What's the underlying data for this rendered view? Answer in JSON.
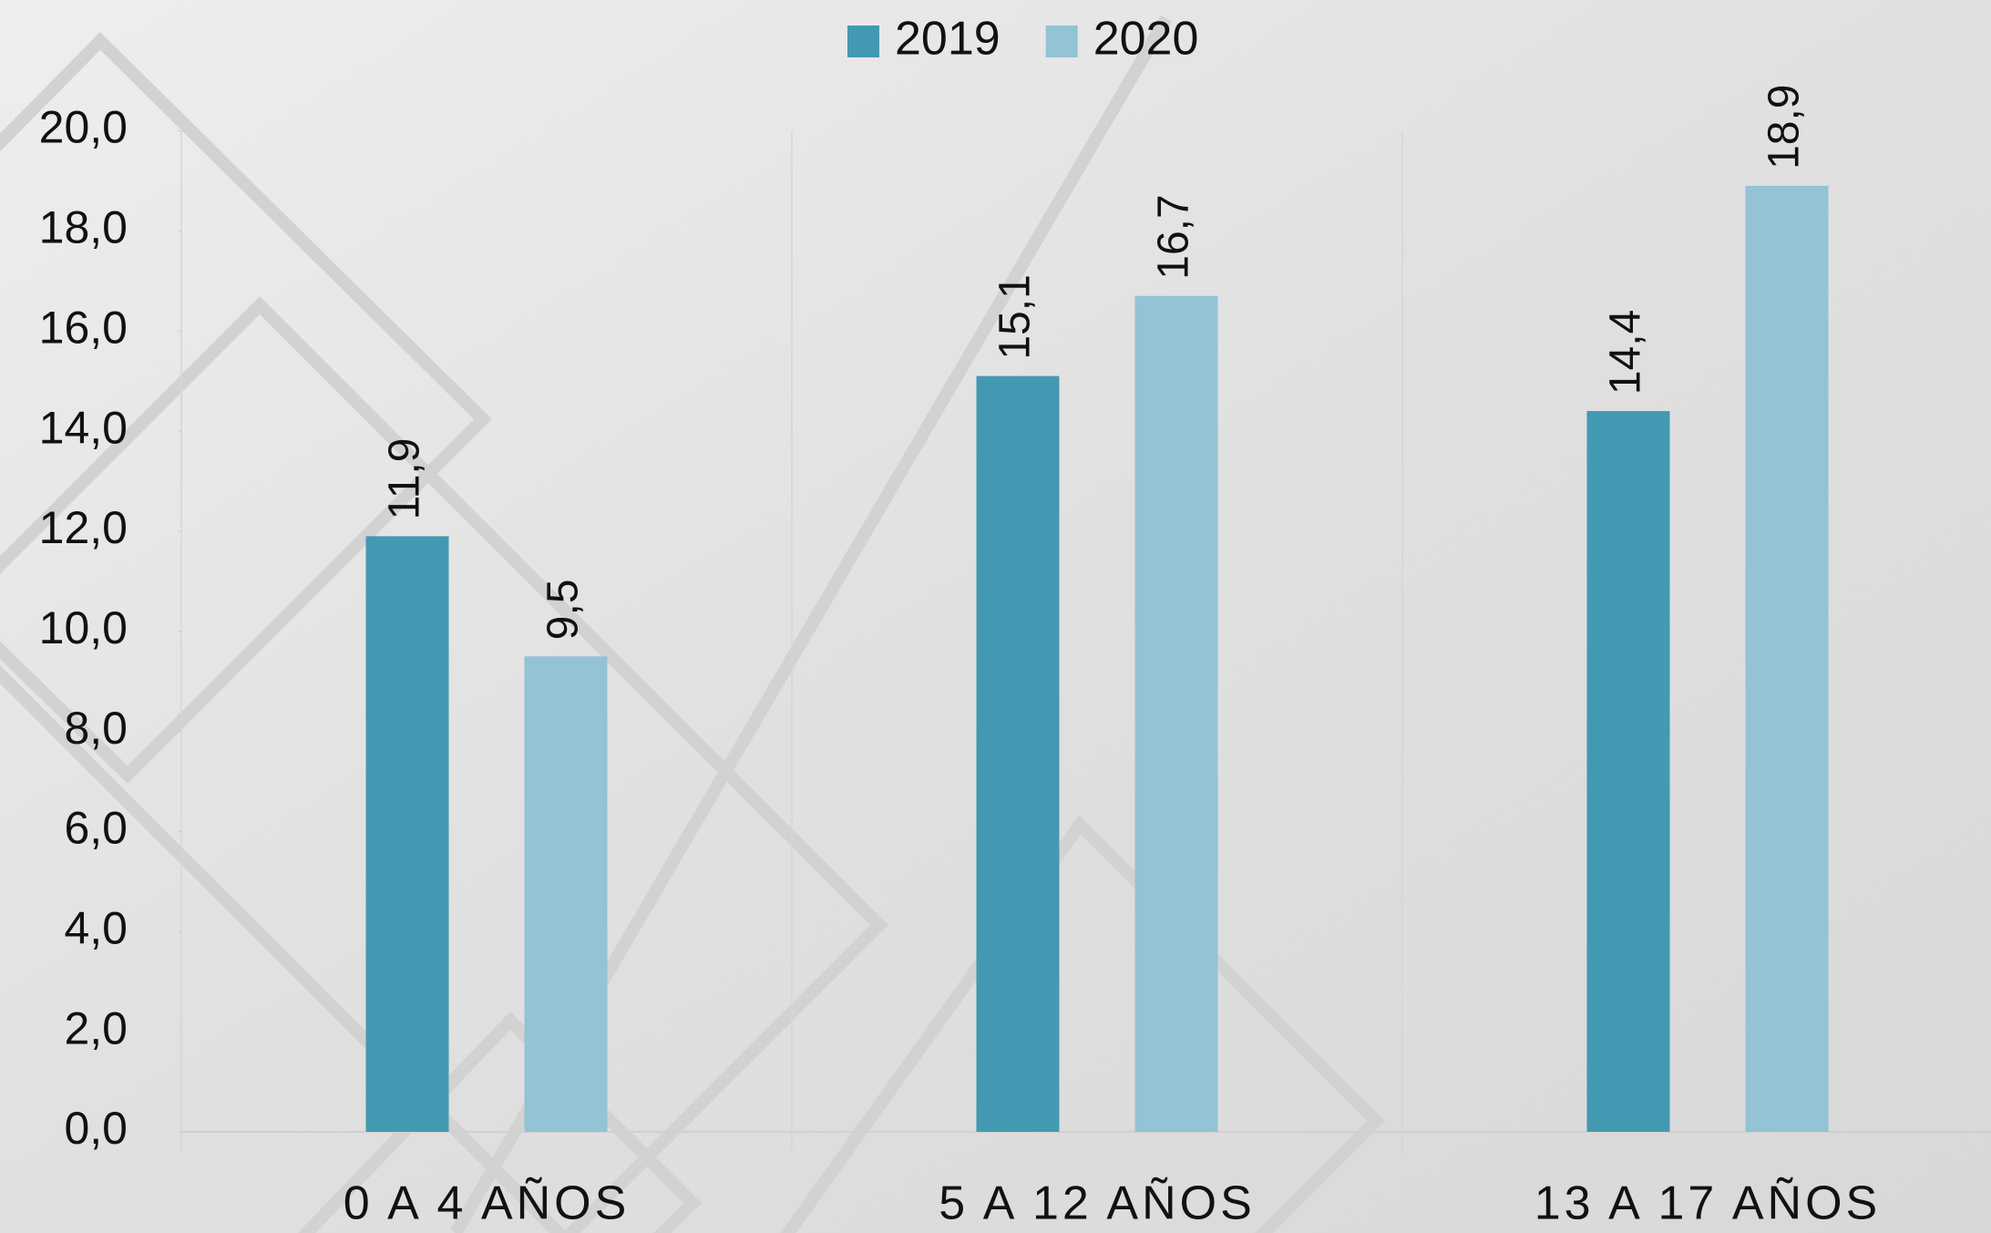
{
  "chart_data": {
    "type": "bar",
    "categories": [
      "0 A 4 AÑOS",
      "5 A 12 AÑOS",
      "13 A 17 AÑOS"
    ],
    "series": [
      {
        "name": "2019",
        "color": "#4399b2",
        "values": [
          11.9,
          15.1,
          14.4
        ],
        "value_labels": [
          "11,9",
          "15,1",
          "14,4"
        ]
      },
      {
        "name": "2020",
        "color": "#93c3d5",
        "values": [
          9.5,
          16.7,
          18.9
        ],
        "value_labels": [
          "9,5",
          "16,7",
          "18,9"
        ]
      }
    ],
    "ylim": [
      0,
      20
    ],
    "yticks": [
      {
        "value": 0,
        "label": "0,0"
      },
      {
        "value": 2,
        "label": "2,0"
      },
      {
        "value": 4,
        "label": "4,0"
      },
      {
        "value": 6,
        "label": "6,0"
      },
      {
        "value": 8,
        "label": "8,0"
      },
      {
        "value": 10,
        "label": "10,0"
      },
      {
        "value": 12,
        "label": "12,0"
      },
      {
        "value": 14,
        "label": "14,0"
      },
      {
        "value": 16,
        "label": "16,0"
      },
      {
        "value": 18,
        "label": "18,0"
      },
      {
        "value": 20,
        "label": "20,0"
      }
    ],
    "legend": "top"
  }
}
